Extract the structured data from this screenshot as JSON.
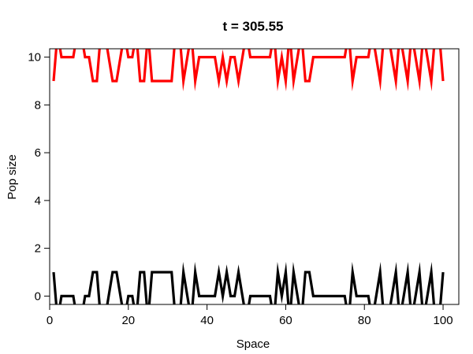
{
  "chart_data": {
    "type": "line",
    "title": "t = 305.55",
    "xlabel": "Space",
    "ylabel": "Pop size",
    "xlim": [
      0,
      104
    ],
    "ylim": [
      -0.35,
      10.35
    ],
    "grid": false,
    "xticks": [
      "0",
      "20",
      "40",
      "60",
      "80",
      "100"
    ],
    "yticks": [
      "0",
      "2",
      "4",
      "6",
      "8",
      "10"
    ],
    "x": [
      1,
      2,
      3,
      4,
      5,
      6,
      7,
      8,
      9,
      10,
      11,
      12,
      13,
      14,
      15,
      16,
      17,
      18,
      19,
      20,
      21,
      22,
      23,
      24,
      25,
      26,
      27,
      28,
      29,
      30,
      31,
      32,
      33,
      34,
      35,
      36,
      37,
      38,
      39,
      40,
      41,
      42,
      43,
      44,
      45,
      46,
      47,
      48,
      49,
      50,
      51,
      52,
      53,
      54,
      55,
      56,
      57,
      58,
      59,
      60,
      61,
      62,
      63,
      64,
      65,
      66,
      67,
      68,
      69,
      70,
      71,
      72,
      73,
      74,
      75,
      76,
      77,
      78,
      79,
      80,
      81,
      82,
      83,
      84,
      85,
      86,
      87,
      88,
      89,
      90,
      91,
      92,
      93,
      94,
      95,
      96,
      97,
      98,
      99,
      100
    ],
    "series": [
      {
        "color": "#ff0000",
        "values": [
          9,
          11,
          10,
          10,
          10,
          10,
          11,
          11,
          10,
          10,
          9,
          9,
          11,
          11,
          10,
          9,
          9,
          10,
          11,
          10,
          10,
          11,
          9,
          9,
          11,
          9,
          9,
          9,
          9,
          9,
          9,
          11,
          11,
          9,
          10,
          11,
          9,
          10,
          10,
          10,
          10,
          10,
          9,
          10,
          9,
          10,
          10,
          9,
          10,
          11,
          10,
          10,
          10,
          10,
          10,
          10,
          11,
          9,
          10,
          9,
          11,
          9,
          10,
          11,
          9,
          9,
          10,
          10,
          10,
          10,
          10,
          10,
          10,
          10,
          10,
          11,
          9,
          10,
          10,
          10,
          10,
          11,
          10,
          9,
          11,
          11,
          10,
          9,
          11,
          10,
          9,
          11,
          10,
          9,
          11,
          10,
          9,
          11,
          11,
          9
        ]
      },
      {
        "color": "#000000",
        "values": [
          1,
          -1,
          0,
          0,
          0,
          0,
          -1,
          -1,
          0,
          0,
          1,
          1,
          -1,
          -1,
          0,
          1,
          1,
          0,
          -1,
          0,
          0,
          -1,
          1,
          1,
          -1,
          1,
          1,
          1,
          1,
          1,
          1,
          -1,
          -1,
          1,
          0,
          -1,
          1,
          0,
          0,
          0,
          0,
          0,
          1,
          0,
          1,
          0,
          0,
          1,
          0,
          -1,
          0,
          0,
          0,
          0,
          0,
          0,
          -1,
          1,
          0,
          1,
          -1,
          1,
          0,
          -1,
          1,
          1,
          0,
          0,
          0,
          0,
          0,
          0,
          0,
          0,
          0,
          -1,
          1,
          0,
          0,
          0,
          0,
          -1,
          0,
          1,
          -1,
          -1,
          0,
          1,
          -1,
          0,
          1,
          -1,
          0,
          1,
          -1,
          0,
          1,
          -1,
          -1,
          1
        ]
      }
    ]
  }
}
